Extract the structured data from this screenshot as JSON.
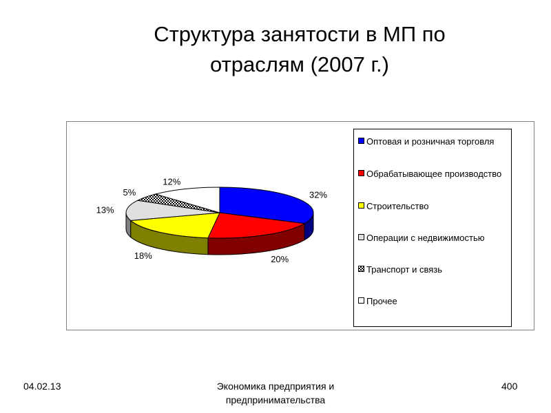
{
  "slide": {
    "title": "Структура занятости в МП по\nотраслям (2007 г.)"
  },
  "footer": {
    "date": "04.02.13",
    "course": "Экономика предприятия и\nпредпринимательства",
    "page": "400"
  },
  "chart_data": {
    "type": "pie",
    "style": "3d",
    "title": "",
    "legend_position": "right",
    "slices": [
      {
        "label": "Оптовая и розничная торговля",
        "value": 32,
        "value_label": "32%",
        "color": "#0000FF",
        "side_color": "#000080",
        "pattern": "solid"
      },
      {
        "label": "Обрабатывающее производство",
        "value": 20,
        "value_label": "20%",
        "color": "#FF0000",
        "side_color": "#800000",
        "pattern": "solid"
      },
      {
        "label": "Строительство",
        "value": 18,
        "value_label": "18%",
        "color": "#FFFF00",
        "side_color": "#808000",
        "pattern": "solid"
      },
      {
        "label": "Операции с недвижимостью",
        "value": 13,
        "value_label": "13%",
        "color": "#E0E0E0",
        "side_color": "#808080",
        "pattern": "solid"
      },
      {
        "label": "Транспорт и связь",
        "value": 5,
        "value_label": "5%",
        "color": "#FFFFFF",
        "side_color": "#606060",
        "pattern": "checker"
      },
      {
        "label": "Прочее",
        "value": 12,
        "value_label": "12%",
        "color": "#FFFFFF",
        "side_color": "#808080",
        "pattern": "solid"
      }
    ]
  }
}
